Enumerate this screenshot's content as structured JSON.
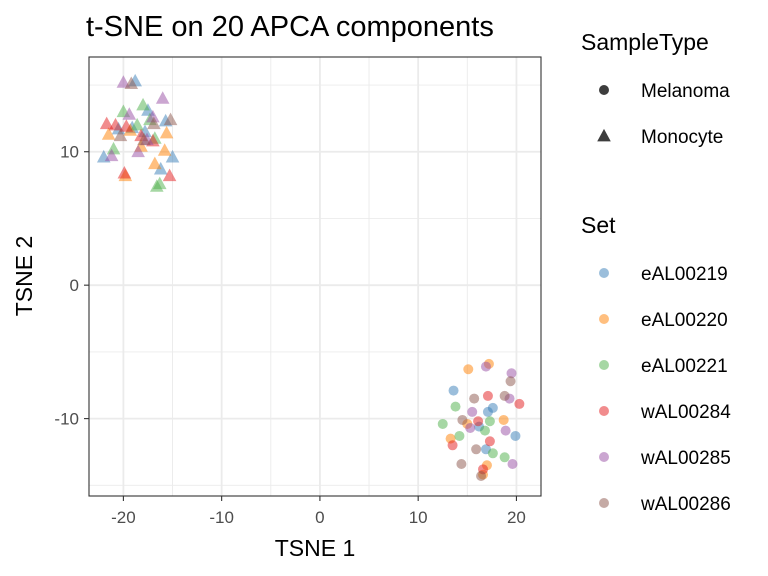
{
  "chart_data": {
    "type": "scatter",
    "title": "t-SNE on 20 APCA components",
    "xlabel": "TSNE 1",
    "ylabel": "TSNE 2",
    "xlim": [
      -23.5,
      22.5
    ],
    "ylim": [
      -15.8,
      17.1
    ],
    "xticks": [
      -20,
      -10,
      0,
      10,
      20
    ],
    "yticks": [
      -10,
      0,
      10
    ],
    "grid": true,
    "legend_position": "right",
    "shape_legend": {
      "title": "SampleType",
      "entries": [
        {
          "label": "Melanoma",
          "shape": "circle"
        },
        {
          "label": "Monocyte",
          "shape": "triangle"
        }
      ]
    },
    "color_legend": {
      "title": "Set",
      "entries": [
        {
          "label": "eAL00219",
          "color": "#377eb8"
        },
        {
          "label": "eAL00220",
          "color": "#ff7f00"
        },
        {
          "label": "eAL00221",
          "color": "#4daf4a"
        },
        {
          "label": "wAL00284",
          "color": "#e41a1c"
        },
        {
          "label": "wAL00285",
          "color": "#984ea3"
        },
        {
          "label": "wAL00286",
          "color": "#8c564b"
        }
      ]
    },
    "point_alpha": 0.5,
    "series": [
      {
        "name": "eAL00219",
        "sample_type": "Monocyte",
        "points": [
          [
            -18.8,
            15.3
          ],
          [
            -22,
            9.6
          ],
          [
            -17.5,
            13.1
          ],
          [
            -15.7,
            12.3
          ],
          [
            -15,
            9.6
          ],
          [
            -20.5,
            11.7
          ],
          [
            -16.2,
            8.7
          ],
          [
            -19.1,
            11.8
          ],
          [
            -17.8,
            11.5
          ]
        ]
      },
      {
        "name": "eAL00220",
        "sample_type": "Monocyte",
        "points": [
          [
            -21.5,
            11.3
          ],
          [
            -19.3,
            11.6
          ],
          [
            -16.8,
            9.1
          ],
          [
            -15.6,
            11.4
          ],
          [
            -19.8,
            8.2
          ],
          [
            -18.2,
            10.4
          ],
          [
            -15.8,
            10.1
          ]
        ]
      },
      {
        "name": "eAL00221",
        "sample_type": "Monocyte",
        "points": [
          [
            -20,
            13
          ],
          [
            -18,
            13.5
          ],
          [
            -16.8,
            11
          ],
          [
            -21,
            10.2
          ],
          [
            -16.6,
            7.4
          ],
          [
            -16.3,
            7.6
          ],
          [
            -18.6,
            12
          ],
          [
            -17.3,
            12.4
          ]
        ]
      },
      {
        "name": "wAL00284",
        "sample_type": "Monocyte",
        "points": [
          [
            -21.7,
            12.1
          ],
          [
            -20.8,
            12
          ],
          [
            -18.2,
            11.2
          ],
          [
            -19.9,
            8.4
          ],
          [
            -17,
            10.8
          ],
          [
            -15.3,
            8.2
          ],
          [
            -19.7,
            11.9
          ]
        ]
      },
      {
        "name": "wAL00285",
        "sample_type": "Monocyte",
        "points": [
          [
            -20,
            15.2
          ],
          [
            -17,
            12.6
          ],
          [
            -16,
            14
          ],
          [
            -18.5,
            10
          ],
          [
            -21.2,
            9.7
          ],
          [
            -17.6,
            10.9
          ],
          [
            -19.4,
            12.8
          ]
        ]
      },
      {
        "name": "wAL00286",
        "sample_type": "Monocyte",
        "points": [
          [
            -19.2,
            15.1
          ],
          [
            -15.2,
            12.4
          ],
          [
            -20.3,
            11.2
          ],
          [
            -17.9,
            10.9
          ],
          [
            -16.9,
            12.1
          ]
        ]
      },
      {
        "name": "eAL00219",
        "sample_type": "Melanoma",
        "points": [
          [
            13.6,
            -7.9
          ],
          [
            17.1,
            -9.5
          ],
          [
            17.6,
            -9.2
          ],
          [
            16.2,
            -10.6
          ],
          [
            19.9,
            -11.3
          ],
          [
            16.9,
            -12.3
          ]
        ]
      },
      {
        "name": "eAL00220",
        "sample_type": "Melanoma",
        "points": [
          [
            15.1,
            -6.3
          ],
          [
            17.2,
            -5.9
          ],
          [
            15,
            -10.4
          ],
          [
            13.3,
            -11.5
          ],
          [
            17,
            -13.5
          ],
          [
            16.6,
            -14.2
          ],
          [
            18.7,
            -10.1
          ]
        ]
      },
      {
        "name": "eAL00221",
        "sample_type": "Melanoma",
        "points": [
          [
            13.8,
            -9.1
          ],
          [
            12.5,
            -10.4
          ],
          [
            16.8,
            -10.9
          ],
          [
            17.3,
            -10.2
          ],
          [
            17.6,
            -12.6
          ],
          [
            18.8,
            -12.9
          ],
          [
            14.2,
            -11.3
          ]
        ]
      },
      {
        "name": "wAL00284",
        "sample_type": "Melanoma",
        "points": [
          [
            16.1,
            -10.2
          ],
          [
            17.3,
            -11.7
          ],
          [
            17.1,
            -8.3
          ],
          [
            20.3,
            -8.9
          ],
          [
            16.6,
            -13.8
          ],
          [
            13.5,
            -12
          ]
        ]
      },
      {
        "name": "wAL00285",
        "sample_type": "Melanoma",
        "points": [
          [
            16.9,
            -6.1
          ],
          [
            19.5,
            -6.6
          ],
          [
            15.5,
            -9.5
          ],
          [
            15.3,
            -10.7
          ],
          [
            19.3,
            -8.5
          ],
          [
            18.9,
            -10.9
          ],
          [
            19.6,
            -13.4
          ]
        ]
      },
      {
        "name": "wAL00286",
        "sample_type": "Melanoma",
        "points": [
          [
            15.7,
            -8.5
          ],
          [
            19.4,
            -7.2
          ],
          [
            18.8,
            -8.3
          ],
          [
            14.5,
            -10.1
          ],
          [
            15.9,
            -12.3
          ],
          [
            14.4,
            -13.4
          ],
          [
            16.4,
            -14.3
          ]
        ]
      }
    ]
  }
}
